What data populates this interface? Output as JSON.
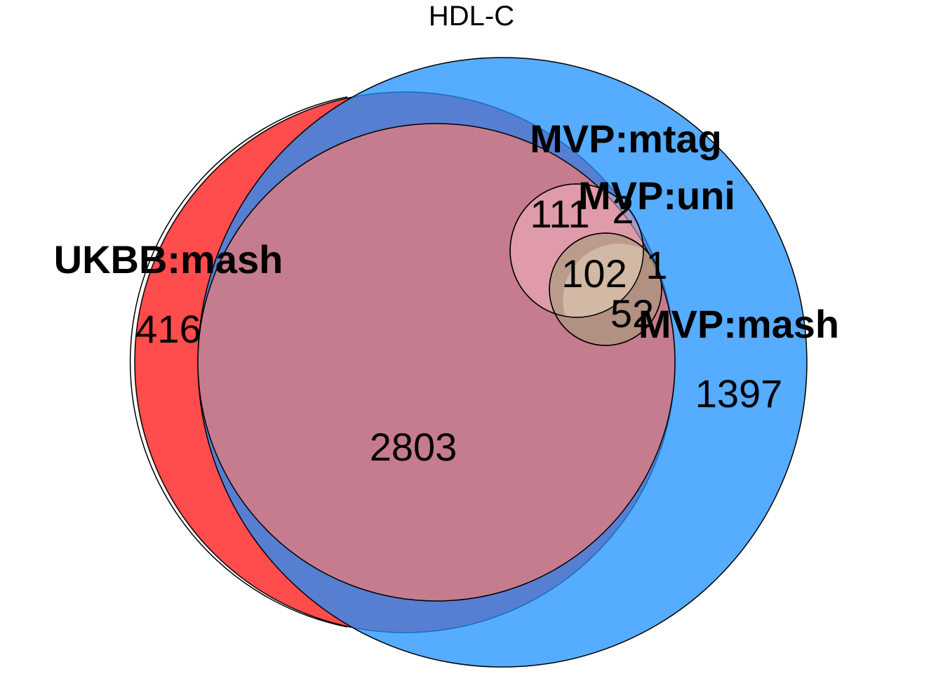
{
  "title": "HDL-C",
  "sets": [
    {
      "name": "UKBB:mash",
      "color": "#FF0000"
    },
    {
      "name": "MVP:mash",
      "color": "#1E90FF"
    },
    {
      "name": "MVP:mtag",
      "color": "#FFC0CB"
    },
    {
      "name": "MVP:uni",
      "color": "#90EE90"
    }
  ],
  "counts": {
    "ukbb_only": "416",
    "ukbb_mvpmash": "2803",
    "mvpmash_only": "1397",
    "mtag_region": "111",
    "mtag_edge": "2",
    "core": "102",
    "uni_edge": "1",
    "uni_mash": "52"
  }
}
